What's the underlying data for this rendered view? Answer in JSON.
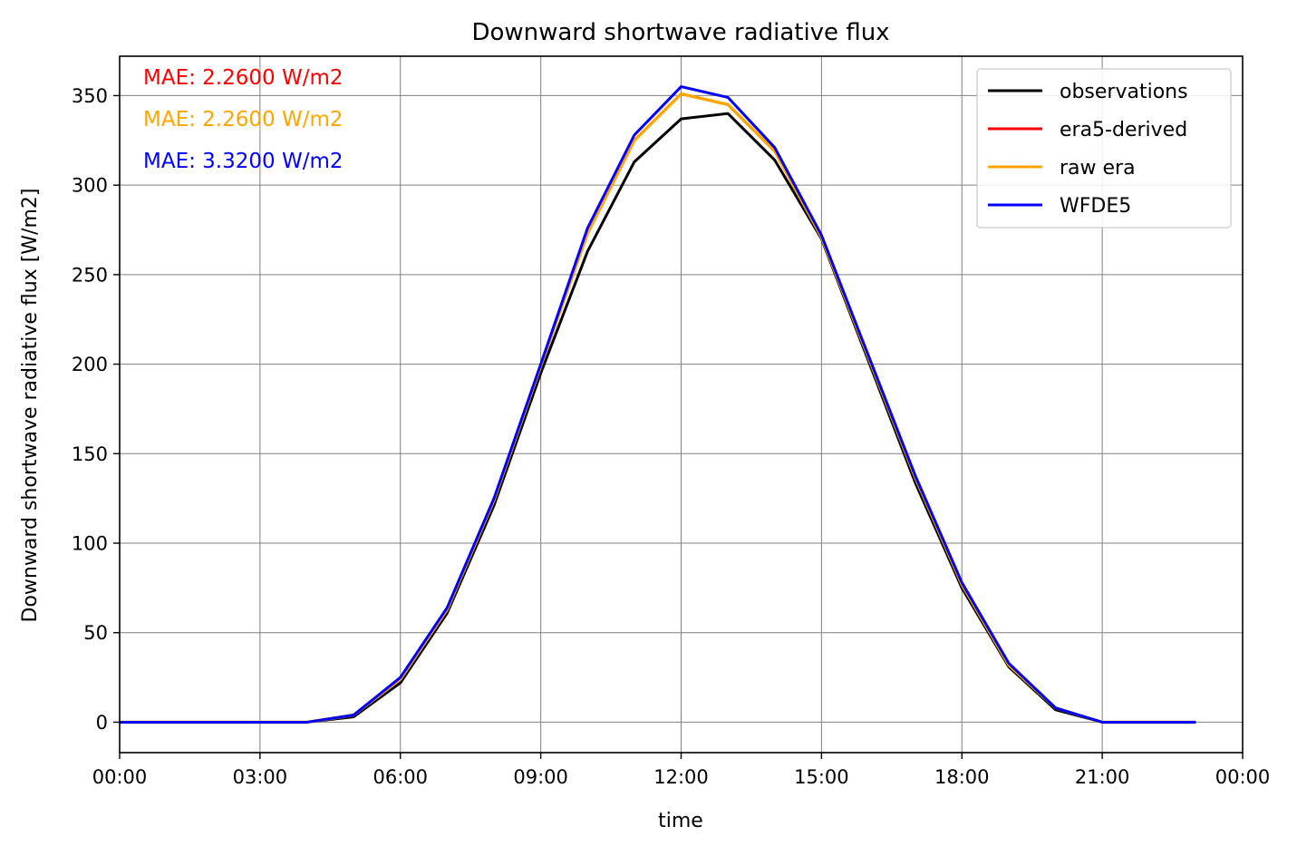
{
  "chart_data": {
    "type": "line",
    "title": "Downward shortwave radiative flux",
    "xlabel": "time",
    "ylabel": "Downward shortwave radiative flux [W/m2]",
    "xlim": [
      "00:00",
      "24:00"
    ],
    "ylim": [
      -17,
      372
    ],
    "x_ticks": [
      "00:00",
      "03:00",
      "06:00",
      "09:00",
      "12:00",
      "15:00",
      "18:00",
      "21:00",
      "00:00"
    ],
    "y_ticks": [
      0,
      50,
      100,
      150,
      200,
      250,
      300,
      350
    ],
    "grid": true,
    "legend_position": "top-right",
    "x": [
      "00:00",
      "01:00",
      "02:00",
      "03:00",
      "04:00",
      "05:00",
      "06:00",
      "07:00",
      "08:00",
      "09:00",
      "10:00",
      "11:00",
      "12:00",
      "13:00",
      "14:00",
      "15:00",
      "16:00",
      "17:00",
      "18:00",
      "19:00",
      "20:00",
      "21:00",
      "22:00",
      "23:00"
    ],
    "series": [
      {
        "name": "observations",
        "color": "#000000",
        "values": [
          0,
          0,
          0,
          0,
          0,
          3,
          22,
          61,
          121,
          195,
          263,
          313,
          337,
          340,
          314,
          270,
          202,
          134,
          75,
          31,
          7,
          0,
          0,
          0
        ]
      },
      {
        "name": "era5-derived",
        "color": "#ff0000",
        "values": [
          0,
          0,
          0,
          0,
          0,
          4,
          24,
          63,
          124,
          199,
          273,
          325,
          351,
          345,
          319,
          271,
          204,
          137,
          77,
          32,
          8,
          0,
          0,
          0
        ]
      },
      {
        "name": "raw era",
        "color": "#ffa500",
        "values": [
          0,
          0,
          0,
          0,
          0,
          4,
          24,
          63,
          124,
          199,
          273,
          325,
          351,
          345,
          319,
          271,
          204,
          137,
          77,
          32,
          8,
          0,
          0,
          0
        ]
      },
      {
        "name": "WFDE5",
        "color": "#0000ff",
        "values": [
          0,
          0,
          0,
          0,
          0,
          4,
          25,
          64,
          125,
          200,
          276,
          328,
          355,
          349,
          321,
          272,
          205,
          138,
          78,
          33,
          8,
          0,
          0,
          0
        ]
      }
    ],
    "annotations": [
      {
        "text": "MAE: 2.2600 W/m2",
        "color": "#ff0000"
      },
      {
        "text": "MAE: 2.2600 W/m2",
        "color": "#ffa500"
      },
      {
        "text": "MAE: 3.3200 W/m2",
        "color": "#0000ff"
      }
    ]
  }
}
